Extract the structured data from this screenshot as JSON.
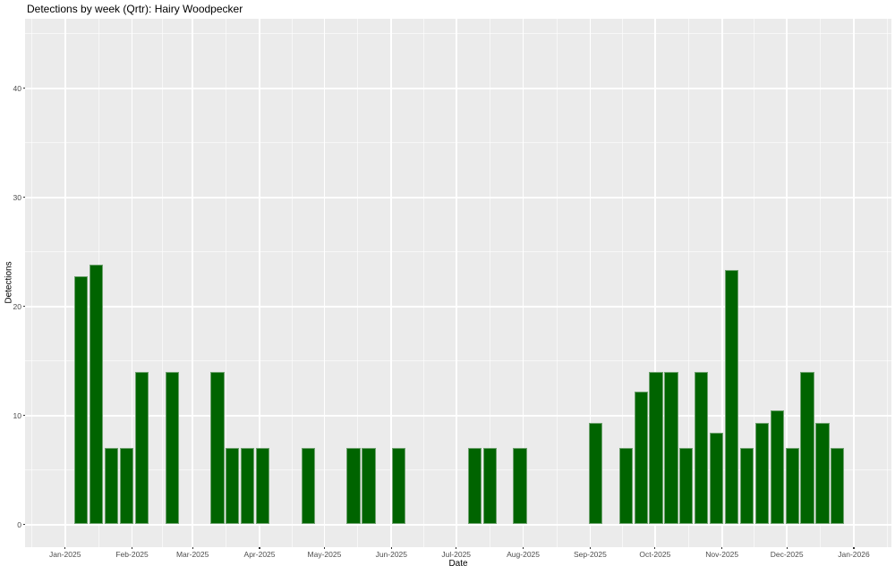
{
  "header": {
    "title": "Detections by week (Qrtr): Hairy Woodpecker"
  },
  "chart_data": {
    "type": "bar",
    "title": "Detections by week (Qrtr): Hairy Woodpecker",
    "xlabel": "Date",
    "ylabel": "Detections",
    "legend": "none",
    "grid": "major-and-minor-white-on-grey",
    "x_tick_labels": [
      "Jan-2025",
      "Feb-2025",
      "Mar-2025",
      "Apr-2025",
      "May-2025",
      "Jun-2025",
      "Jul-2025",
      "Aug-2025",
      "Sep-2025",
      "Oct-2025",
      "Nov-2025",
      "Dec-2025",
      "Jan-2026"
    ],
    "x_tick_days": [
      0,
      31,
      59,
      90,
      120,
      151,
      181,
      212,
      243,
      273,
      304,
      334,
      365
    ],
    "x_minor_days": [
      -15.5,
      15.5,
      45,
      74.5,
      105,
      135.5,
      166,
      196.5,
      227.5,
      258,
      288.5,
      319,
      349.5,
      380.5
    ],
    "y_major_ticks": [
      0,
      10,
      20,
      30,
      40
    ],
    "y_minor_ticks": [
      5,
      15,
      25,
      35,
      45
    ],
    "x_domain_days": [
      -18.4,
      382.4
    ],
    "y_domain": [
      -2.05,
      46.4
    ],
    "bar_width_days": 6.3,
    "weeks": [
      "2025-01-05",
      "2025-01-12",
      "2025-01-19",
      "2025-01-26",
      "2025-02-02",
      "2025-02-16",
      "2025-03-09",
      "2025-03-16",
      "2025-03-23",
      "2025-03-30",
      "2025-04-20",
      "2025-05-11",
      "2025-05-18",
      "2025-06-01",
      "2025-07-06",
      "2025-07-13",
      "2025-07-27",
      "2025-08-31",
      "2025-09-14",
      "2025-09-21",
      "2025-09-28",
      "2025-10-05",
      "2025-10-12",
      "2025-10-19",
      "2025-10-26",
      "2025-11-02",
      "2025-11-09",
      "2025-11-16",
      "2025-11-23",
      "2025-11-30",
      "2025-12-07",
      "2025-12-14",
      "2025-12-21"
    ],
    "day_centers": [
      7.5,
      14.5,
      21.5,
      28.5,
      35.5,
      49.5,
      70.5,
      77.5,
      84.5,
      91.5,
      112.5,
      133.5,
      140.5,
      154.5,
      189.5,
      196.5,
      210.5,
      245.5,
      259.5,
      266.5,
      273.5,
      280.5,
      287.5,
      294.5,
      301.5,
      308.5,
      315.5,
      322.5,
      329.5,
      336.5,
      343.5,
      350.5,
      357.5
    ],
    "values": [
      22.8,
      23.8,
      7,
      7,
      14,
      14,
      14,
      7,
      7,
      7,
      7,
      7,
      7,
      7,
      7,
      7,
      7,
      9.3,
      7,
      12.2,
      14,
      14,
      7,
      14,
      8.4,
      23.3,
      7,
      9.3,
      10.5,
      7,
      14,
      9.3,
      7
    ],
    "colors": {
      "bar_fill": "#006400",
      "bar_edge": "#6FA26F",
      "panel_background": "#EBEBEB",
      "grid_major": "#FFFFFF",
      "grid_minor": "rgba(255,255,255,0.6)",
      "tick_label": "#4D4D4D",
      "axis_title": "#000000",
      "title": "#000000"
    }
  }
}
